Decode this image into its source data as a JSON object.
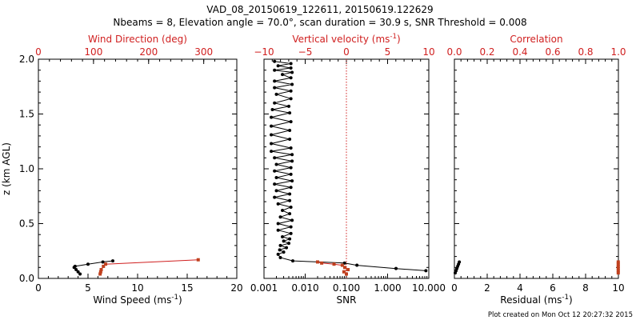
{
  "header": {
    "title_line1": "VAD_08_20150619_122611, 20150619.122629",
    "title_line2": "Nbeams = 8, Elevation angle = 70.0°, scan duration = 30.9 s, SNR Threshold = 0.008"
  },
  "footer": {
    "created": "Plot created on Mon Oct 12 20:27:32 2015"
  },
  "colors": {
    "axis": "#000000",
    "secondary": "#d02020",
    "secondary_marker": "#c0401e"
  },
  "chart_data": [
    {
      "type": "line",
      "panel": "wind",
      "ylabel": "z (km AGL)",
      "ylim": [
        0.0,
        2.0
      ],
      "yticks": [
        0.0,
        0.5,
        1.0,
        1.5,
        2.0
      ],
      "ytick_labels": [
        "0.0",
        "0.5",
        "1.0",
        "1.5",
        "2.0"
      ],
      "xlabel_bottom": "Wind Speed (ms",
      "xlabel_bottom_sup": "-1",
      "xlabel_bottom_tail": ")",
      "xlim_bottom": [
        0,
        20
      ],
      "xticks_bottom": [
        0,
        5,
        10,
        15,
        20
      ],
      "xtick_labels_bottom": [
        "0",
        "5",
        "10",
        "15",
        "20"
      ],
      "xlabel_top": "Wind Direction (deg)",
      "xlim_top": [
        0,
        360
      ],
      "xticks_top": [
        0,
        100,
        200,
        300
      ],
      "xtick_labels_top": [
        "0",
        "100",
        "200",
        "300"
      ],
      "series": [
        {
          "axis": "bottom",
          "color": "#000000",
          "x": [
            4.2,
            4.0,
            3.8,
            3.6,
            3.7,
            5.0,
            6.5,
            7.5
          ],
          "y": [
            0.04,
            0.06,
            0.08,
            0.1,
            0.11,
            0.13,
            0.15,
            0.16
          ]
        },
        {
          "axis": "top",
          "color": "#d02020",
          "x": [
            112,
            113,
            114,
            118,
            122,
            290
          ],
          "y": [
            0.04,
            0.06,
            0.08,
            0.11,
            0.13,
            0.17
          ]
        }
      ]
    },
    {
      "type": "line",
      "panel": "vertical",
      "ylim": [
        0.0,
        2.0
      ],
      "xlabel_bottom": "SNR",
      "xscale_bottom": "log",
      "xlim_bottom": [
        0.001,
        10
      ],
      "xticks_bottom": [
        0.001,
        0.01,
        0.1,
        1,
        10
      ],
      "xtick_labels_bottom": [
        "0.001",
        "0.010",
        "0.100",
        "1.000",
        "10.000"
      ],
      "xlabel_top": "Vertical velocity (ms",
      "xlabel_top_sup": "-1",
      "xlabel_top_tail": ")",
      "xlim_top": [
        -10,
        10
      ],
      "xticks_top": [
        -10,
        -5,
        0,
        5,
        10
      ],
      "xtick_labels_top": [
        "−10",
        "−5",
        "0",
        "5",
        "10"
      ],
      "reference_line_top_x": 0,
      "series": [
        {
          "axis": "bottom",
          "color": "#000000",
          "x": [
            8.5,
            1.6,
            0.18,
            0.09,
            0.005,
            0.0025,
            0.0022,
            0.003,
            0.0024,
            0.0035,
            0.0025,
            0.004,
            0.003,
            0.0042,
            0.0028,
            0.0045,
            0.0022,
            0.0045,
            0.0022,
            0.0048,
            0.0025,
            0.0042,
            0.0028,
            0.0045,
            0.0022,
            0.0042,
            0.0018,
            0.0042,
            0.002,
            0.0045,
            0.0018,
            0.0048,
            0.002,
            0.0045,
            0.0018,
            0.0045,
            0.002,
            0.0048,
            0.0018,
            0.0048,
            0.0015,
            0.0045,
            0.0015,
            0.0042,
            0.0015,
            0.0042,
            0.0015,
            0.0045,
            0.0015,
            0.0042,
            0.0016,
            0.004,
            0.0018,
            0.0045,
            0.002,
            0.0045,
            0.0018,
            0.0048,
            0.0018,
            0.0045,
            0.0028,
            0.0048,
            0.0018,
            0.0045,
            0.0022,
            0.0045,
            0.0018
          ],
          "y": [
            0.07,
            0.09,
            0.12,
            0.14,
            0.16,
            0.19,
            0.22,
            0.24,
            0.26,
            0.28,
            0.3,
            0.32,
            0.34,
            0.36,
            0.38,
            0.41,
            0.44,
            0.47,
            0.5,
            0.53,
            0.56,
            0.59,
            0.62,
            0.65,
            0.68,
            0.71,
            0.74,
            0.77,
            0.8,
            0.83,
            0.86,
            0.89,
            0.92,
            0.95,
            0.98,
            1.01,
            1.04,
            1.07,
            1.1,
            1.13,
            1.16,
            1.19,
            1.23,
            1.27,
            1.31,
            1.35,
            1.39,
            1.43,
            1.47,
            1.51,
            1.54,
            1.57,
            1.6,
            1.64,
            1.68,
            1.71,
            1.74,
            1.77,
            1.8,
            1.83,
            1.86,
            1.88,
            1.9,
            1.92,
            1.94,
            1.96,
            1.98
          ]
        },
        {
          "axis": "top",
          "color": "#d02020",
          "x": [
            0.0,
            -0.3,
            0.2,
            -0.2,
            -0.5,
            -1.5,
            -3.0,
            -3.5
          ],
          "y": [
            0.04,
            0.06,
            0.08,
            0.1,
            0.12,
            0.13,
            0.14,
            0.15
          ]
        }
      ]
    },
    {
      "type": "line",
      "panel": "quality",
      "ylim": [
        0.0,
        2.0
      ],
      "xlabel_bottom": "Residual (ms",
      "xlabel_bottom_sup": "-1",
      "xlabel_bottom_tail": ")",
      "xlim_bottom": [
        0,
        10
      ],
      "xticks_bottom": [
        0,
        2,
        4,
        6,
        8,
        10
      ],
      "xtick_labels_bottom": [
        "0",
        "2",
        "4",
        "6",
        "8",
        "10"
      ],
      "xlabel_top": "Correlation",
      "xlim_top": [
        0.0,
        1.0
      ],
      "xticks_top": [
        0.0,
        0.2,
        0.4,
        0.6,
        0.8,
        1.0
      ],
      "xtick_labels_top": [
        "0.0",
        "0.2",
        "0.4",
        "0.6",
        "0.8",
        "1.0"
      ],
      "series": [
        {
          "axis": "bottom",
          "color": "#000000",
          "x": [
            0.05,
            0.1,
            0.15,
            0.2,
            0.25,
            0.3
          ],
          "y": [
            0.05,
            0.07,
            0.09,
            0.11,
            0.13,
            0.15
          ]
        },
        {
          "axis": "top",
          "color": "#d02020",
          "x": [
            0.999,
            0.999,
            0.999,
            0.999,
            0.999,
            0.999
          ],
          "y": [
            0.05,
            0.07,
            0.09,
            0.11,
            0.13,
            0.15
          ]
        }
      ]
    }
  ]
}
